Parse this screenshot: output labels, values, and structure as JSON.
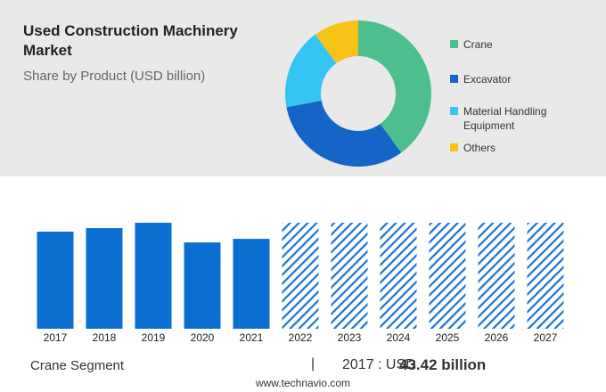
{
  "chart_data": [
    {
      "type": "pie",
      "title": "Used Construction Machinery Market",
      "subtitle": "Share by Product (USD billion)",
      "categories": [
        "Crane",
        "Excavator",
        "Material Handling Equipment",
        "Others"
      ],
      "values": [
        40,
        32,
        18,
        10
      ],
      "colors": [
        "#4dbf8e",
        "#1565c8",
        "#35c5f5",
        "#f7c316"
      ],
      "donut": true
    },
    {
      "type": "bar",
      "categories": [
        "2017",
        "2018",
        "2019",
        "2020",
        "2021",
        "2022",
        "2023",
        "2024",
        "2025",
        "2026",
        "2027"
      ],
      "values": [
        43.42,
        45.0,
        47.4,
        38.6,
        40.2,
        47.4,
        47.4,
        47.4,
        47.4,
        47.4,
        47.4
      ],
      "hatch": [
        false,
        false,
        false,
        false,
        false,
        true,
        true,
        true,
        true,
        true,
        true
      ],
      "color": "#0b6fd1",
      "ylim": [
        0,
        50
      ]
    }
  ],
  "footer": {
    "segment": "Crane Segment",
    "separator": "|",
    "highlight_prefix": "2017 : USD",
    "highlight_value": "43.42 billion",
    "source": "www.technavio.com"
  }
}
